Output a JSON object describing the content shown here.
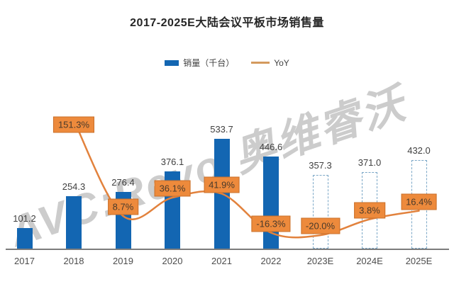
{
  "title": "2017-2025E大陆会议平板市场销售量",
  "watermark": "AVC:Revo 奥维睿沃",
  "legend": [
    {
      "label": "销量（千台）",
      "marker": "bar-swatch",
      "color": "#1366B2"
    },
    {
      "label": "YoY",
      "marker": "line-swatch",
      "color": "#D49A5E"
    }
  ],
  "chart_data": {
    "type": "bar",
    "subtype": "bar+line-combo",
    "title": "2017-2025E大陆会议平板市场销售量",
    "xlabel": "",
    "ylabel": "",
    "grid": false,
    "legend_position": "top",
    "categories": [
      "2017",
      "2018",
      "2019",
      "2020",
      "2021",
      "2022",
      "2023E",
      "2024E",
      "2025E"
    ],
    "series": [
      {
        "name": "销量（千台）",
        "type": "bar",
        "unit": "千台",
        "values": [
          101.2,
          254.3,
          276.4,
          376.1,
          533.7,
          446.6,
          357.3,
          371.0,
          432.0
        ],
        "estimated_indices": [
          6,
          7,
          8
        ],
        "color": "#1366B2",
        "estimated_border_color": "#7BA7C7"
      },
      {
        "name": "YoY",
        "type": "line",
        "unit": "%",
        "values": [
          null,
          151.3,
          8.7,
          36.1,
          41.9,
          -16.3,
          -20.0,
          3.8,
          16.4
        ],
        "color": "#E2823D",
        "label_background": "#ED8A3C",
        "label_border": "#C9702B"
      }
    ]
  },
  "colors": {
    "bar": "#1366B2",
    "bar_estimated_border": "#7BA7C7",
    "line": "#E2823D",
    "yoy_box_bg": "#ED8A3C",
    "yoy_box_border": "#C9702B",
    "axis": "#7C7C7C",
    "value_label": "#404040",
    "title": "#262626",
    "watermark": "#CCCCCC"
  }
}
